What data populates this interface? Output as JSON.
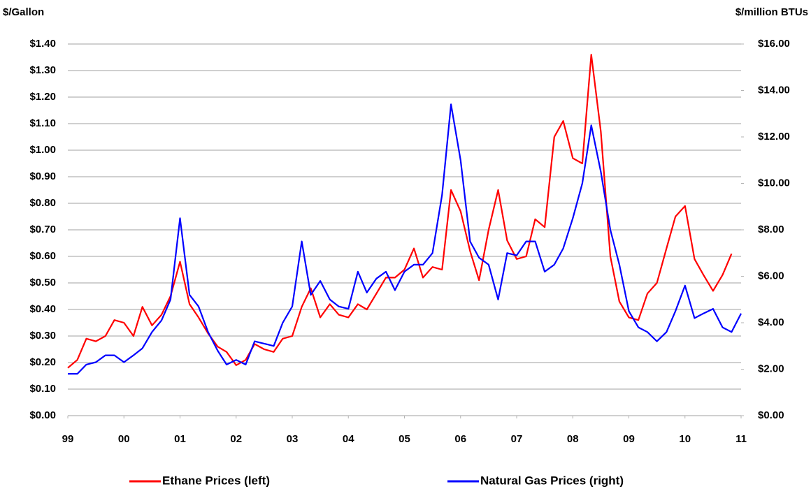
{
  "chart_data": {
    "type": "line",
    "y_label": "$/Gallon",
    "y2_label": "$/million BTUs",
    "x": [
      1999,
      1999.17,
      1999.33,
      1999.5,
      1999.67,
      1999.83,
      2000,
      2000.17,
      2000.33,
      2000.5,
      2000.67,
      2000.83,
      2001,
      2001.17,
      2001.33,
      2001.5,
      2001.67,
      2001.83,
      2002,
      2002.17,
      2002.33,
      2002.5,
      2002.67,
      2002.83,
      2003,
      2003.17,
      2003.33,
      2003.5,
      2003.67,
      2003.83,
      2004,
      2004.17,
      2004.33,
      2004.5,
      2004.67,
      2004.83,
      2005,
      2005.17,
      2005.33,
      2005.5,
      2005.67,
      2005.83,
      2006,
      2006.17,
      2006.33,
      2006.5,
      2006.67,
      2006.83,
      2007,
      2007.17,
      2007.33,
      2007.5,
      2007.67,
      2007.83,
      2008,
      2008.17,
      2008.33,
      2008.5,
      2008.67,
      2008.83,
      2009,
      2009.17,
      2009.33,
      2009.5,
      2009.67,
      2009.83,
      2010,
      2010.17,
      2010.33,
      2010.5,
      2010.67,
      2010.83,
      2011
    ],
    "series": [
      {
        "name": "Ethane Prices (left)",
        "color": "#ff0000",
        "axis": "y",
        "values": [
          0.18,
          0.21,
          0.29,
          0.28,
          0.3,
          0.36,
          0.35,
          0.3,
          0.41,
          0.34,
          0.38,
          0.45,
          0.58,
          0.42,
          0.37,
          0.31,
          0.26,
          0.24,
          0.19,
          0.21,
          0.27,
          0.25,
          0.24,
          0.29,
          0.3,
          0.41,
          0.48,
          0.37,
          0.42,
          0.38,
          0.37,
          0.42,
          0.4,
          0.46,
          0.52,
          0.52,
          0.55,
          0.63,
          0.52,
          0.56,
          0.55,
          0.85,
          0.77,
          0.62,
          0.51,
          0.7,
          0.85,
          0.66,
          0.59,
          0.6,
          0.74,
          0.71,
          1.05,
          1.11,
          0.97,
          0.95,
          1.36,
          1.07,
          0.6,
          0.43,
          0.37,
          0.36,
          0.46,
          0.5,
          0.63,
          0.75,
          0.79,
          0.59,
          0.53,
          0.47,
          0.53,
          0.61,
          null
        ]
      },
      {
        "name": "Natural Gas Prices (right)",
        "color": "#0000ff",
        "axis": "y2",
        "values": [
          1.8,
          1.8,
          2.2,
          2.3,
          2.6,
          2.6,
          2.3,
          2.6,
          2.9,
          3.6,
          4.1,
          5.0,
          8.5,
          5.2,
          4.7,
          3.6,
          2.8,
          2.2,
          2.4,
          2.2,
          3.2,
          3.1,
          3.0,
          4.0,
          4.7,
          7.5,
          5.2,
          5.8,
          5.0,
          4.7,
          4.6,
          6.2,
          5.3,
          5.9,
          6.2,
          5.4,
          6.2,
          6.5,
          6.5,
          7.0,
          9.5,
          13.4,
          11.0,
          7.5,
          6.8,
          6.5,
          5.0,
          7.0,
          6.9,
          7.5,
          7.5,
          6.2,
          6.5,
          7.2,
          8.5,
          10.0,
          12.5,
          10.5,
          8.0,
          6.5,
          4.5,
          3.8,
          3.6,
          3.2,
          3.6,
          4.5,
          5.6,
          4.2,
          4.4,
          4.6,
          3.8,
          3.6,
          4.4
        ]
      }
    ],
    "xlim": [
      1999,
      2011
    ],
    "xticks": [
      {
        "value": 1999,
        "label": "99"
      },
      {
        "value": 2000,
        "label": "00"
      },
      {
        "value": 2001,
        "label": "01"
      },
      {
        "value": 2002,
        "label": "02"
      },
      {
        "value": 2003,
        "label": "03"
      },
      {
        "value": 2004,
        "label": "04"
      },
      {
        "value": 2005,
        "label": "05"
      },
      {
        "value": 2006,
        "label": "06"
      },
      {
        "value": 2007,
        "label": "07"
      },
      {
        "value": 2008,
        "label": "08"
      },
      {
        "value": 2009,
        "label": "09"
      },
      {
        "value": 2010,
        "label": "10"
      },
      {
        "value": 2011,
        "label": "11"
      }
    ],
    "ylim": [
      0,
      1.4
    ],
    "yticks": [
      {
        "value": 0,
        "label": "$0.00"
      },
      {
        "value": 0.1,
        "label": "$0.10"
      },
      {
        "value": 0.2,
        "label": "$0.20"
      },
      {
        "value": 0.3,
        "label": "$0.30"
      },
      {
        "value": 0.4,
        "label": "$0.40"
      },
      {
        "value": 0.5,
        "label": "$0.50"
      },
      {
        "value": 0.6,
        "label": "$0.60"
      },
      {
        "value": 0.7,
        "label": "$0.70"
      },
      {
        "value": 0.8,
        "label": "$0.80"
      },
      {
        "value": 0.9,
        "label": "$0.90"
      },
      {
        "value": 1.0,
        "label": "$1.00"
      },
      {
        "value": 1.1,
        "label": "$1.10"
      },
      {
        "value": 1.2,
        "label": "$1.20"
      },
      {
        "value": 1.3,
        "label": "$1.30"
      },
      {
        "value": 1.4,
        "label": "$1.40"
      }
    ],
    "y2lim": [
      0,
      16
    ],
    "y2ticks": [
      {
        "value": 0,
        "label": "$0.00"
      },
      {
        "value": 2,
        "label": "$2.00"
      },
      {
        "value": 4,
        "label": "$4.00"
      },
      {
        "value": 6,
        "label": "$6.00"
      },
      {
        "value": 8,
        "label": "$8.00"
      },
      {
        "value": 10,
        "label": "$10.00"
      },
      {
        "value": 12,
        "label": "$12.00"
      },
      {
        "value": 14,
        "label": "$14.00"
      },
      {
        "value": 16,
        "label": "$16.00"
      }
    ],
    "grid": true,
    "legend": "bottom"
  }
}
